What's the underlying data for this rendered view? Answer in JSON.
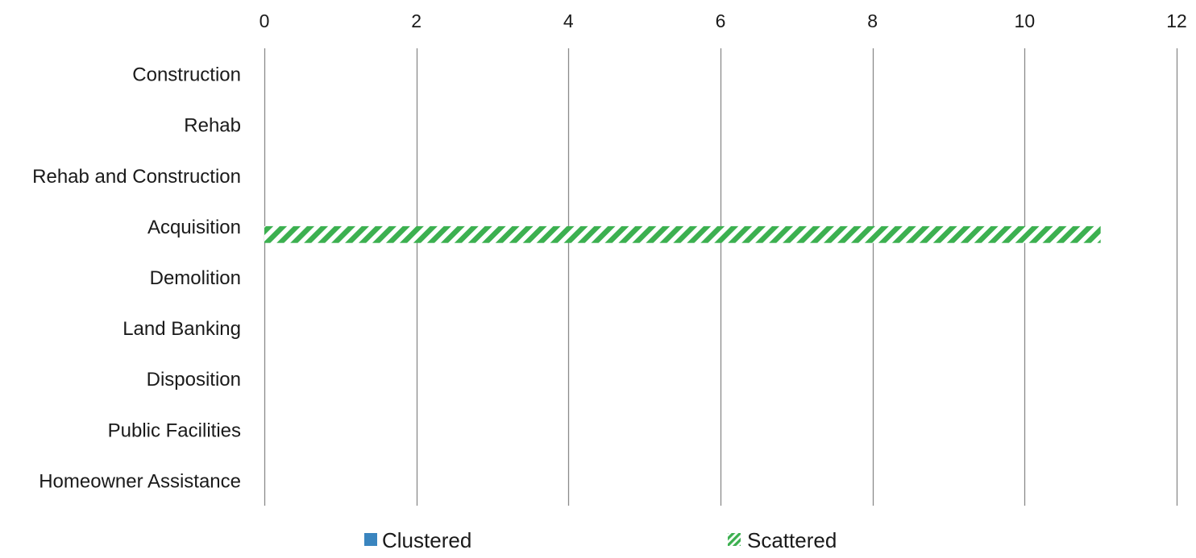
{
  "chart_data": {
    "type": "bar",
    "orientation": "horizontal",
    "categories": [
      "Construction",
      "Rehab",
      "Rehab and Construction",
      "Acquisition",
      "Demolition",
      "Land Banking",
      "Disposition",
      "Public Facilities",
      "Homeowner Assistance"
    ],
    "series": [
      {
        "name": "Clustered",
        "values": [
          0,
          0,
          0,
          0,
          0,
          0,
          0,
          0,
          0
        ],
        "color": "#3a85bf",
        "fill": "solid"
      },
      {
        "name": "Scattered",
        "values": [
          0,
          0,
          0,
          11,
          0,
          0,
          0,
          0,
          0
        ],
        "color": "#3cb050",
        "fill": "diagonal-stripes"
      }
    ],
    "x_ticks": [
      "0",
      "2",
      "4",
      "6",
      "8",
      "10",
      "12"
    ],
    "xlim": [
      0,
      12
    ],
    "x_axis_position": "top",
    "grid": true,
    "legend_position": "bottom",
    "title": "",
    "xlabel": "",
    "ylabel": ""
  }
}
